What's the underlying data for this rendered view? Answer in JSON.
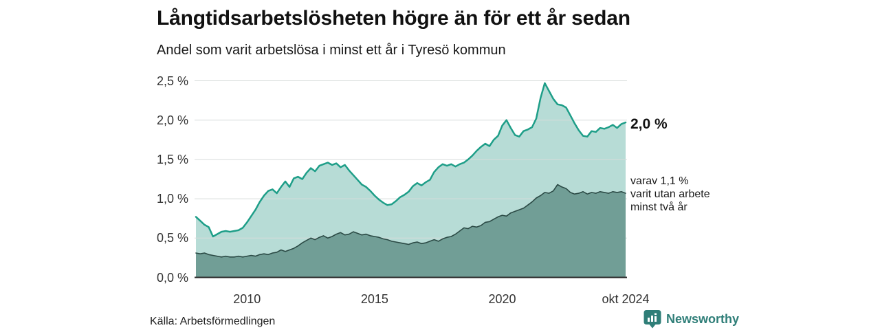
{
  "header": {
    "title": "Långtidsarbetslösheten högre än för ett år sedan",
    "subtitle": "Andel som varit arbetslösa i minst ett år i Tyresö kommun"
  },
  "chart_data": {
    "type": "area",
    "title": "Långtidsarbetslösheten högre än för ett år sedan",
    "subtitle": "Andel som varit arbetslösa i minst ett år i Tyresö kommun",
    "unit": "%",
    "x_start": 2008.0,
    "x_step_years": 0.166667,
    "x_end_label": "okt 2024",
    "ylim": [
      0,
      2.5
    ],
    "grid": true,
    "yticks": [
      {
        "value": 0.0,
        "label": "0,0 %"
      },
      {
        "value": 0.5,
        "label": "0,5 %"
      },
      {
        "value": 1.0,
        "label": "1,0 %"
      },
      {
        "value": 1.5,
        "label": "1,5 %"
      },
      {
        "value": 2.0,
        "label": "2,0 %"
      },
      {
        "value": 2.5,
        "label": "2,5 %"
      }
    ],
    "xticks": [
      {
        "year": 2010.0,
        "label": "2010"
      },
      {
        "year": 2015.0,
        "label": "2015"
      },
      {
        "year": 2020.0,
        "label": "2020"
      },
      {
        "year": 2024.8333,
        "label": "okt 2024"
      }
    ],
    "series": [
      {
        "name": "Andel som varit arbetslösa i minst ett år",
        "fill": "#b7dcd6",
        "line": "#1e9e88",
        "line_width": 2.5,
        "latest_value": 2.0,
        "values": [
          0.77,
          0.72,
          0.67,
          0.64,
          0.52,
          0.55,
          0.58,
          0.59,
          0.58,
          0.59,
          0.6,
          0.63,
          0.7,
          0.78,
          0.86,
          0.96,
          1.04,
          1.1,
          1.12,
          1.07,
          1.15,
          1.22,
          1.15,
          1.26,
          1.28,
          1.25,
          1.33,
          1.39,
          1.35,
          1.42,
          1.44,
          1.46,
          1.43,
          1.45,
          1.4,
          1.43,
          1.36,
          1.3,
          1.24,
          1.18,
          1.15,
          1.1,
          1.04,
          0.99,
          0.95,
          0.92,
          0.93,
          0.97,
          1.02,
          1.05,
          1.09,
          1.16,
          1.2,
          1.17,
          1.21,
          1.24,
          1.34,
          1.4,
          1.44,
          1.42,
          1.44,
          1.41,
          1.44,
          1.46,
          1.5,
          1.55,
          1.61,
          1.66,
          1.7,
          1.67,
          1.75,
          1.8,
          1.93,
          2.0,
          1.9,
          1.81,
          1.79,
          1.86,
          1.88,
          1.91,
          2.02,
          2.28,
          2.47,
          2.37,
          2.27,
          2.2,
          2.19,
          2.16,
          2.06,
          1.96,
          1.87,
          1.8,
          1.79,
          1.86,
          1.85,
          1.9,
          1.89,
          1.91,
          1.94,
          1.9,
          1.95,
          1.97
        ]
      },
      {
        "name": "varav utan arbete minst två år",
        "fill": "#719e96",
        "line": "#2b4a45",
        "line_width": 1.6,
        "latest_value": 1.1,
        "values": [
          0.31,
          0.3,
          0.31,
          0.29,
          0.28,
          0.27,
          0.26,
          0.27,
          0.26,
          0.26,
          0.27,
          0.26,
          0.27,
          0.28,
          0.27,
          0.29,
          0.3,
          0.29,
          0.31,
          0.32,
          0.35,
          0.33,
          0.35,
          0.37,
          0.4,
          0.44,
          0.47,
          0.5,
          0.48,
          0.51,
          0.53,
          0.5,
          0.52,
          0.55,
          0.57,
          0.54,
          0.55,
          0.58,
          0.56,
          0.54,
          0.55,
          0.53,
          0.52,
          0.51,
          0.49,
          0.48,
          0.46,
          0.45,
          0.44,
          0.43,
          0.42,
          0.44,
          0.45,
          0.43,
          0.44,
          0.46,
          0.48,
          0.46,
          0.49,
          0.51,
          0.52,
          0.55,
          0.59,
          0.63,
          0.62,
          0.65,
          0.64,
          0.66,
          0.7,
          0.71,
          0.74,
          0.77,
          0.79,
          0.78,
          0.82,
          0.84,
          0.86,
          0.88,
          0.92,
          0.96,
          1.01,
          1.04,
          1.08,
          1.07,
          1.1,
          1.18,
          1.15,
          1.13,
          1.08,
          1.06,
          1.07,
          1.09,
          1.06,
          1.08,
          1.07,
          1.09,
          1.08,
          1.07,
          1.09,
          1.08,
          1.09,
          1.07
        ]
      }
    ],
    "annotations": {
      "latest_total_label": "2,0 %",
      "latest_two_year_label": "varav 1,1 %\nvarit utan arbete\nminst två år"
    }
  },
  "footer": {
    "source": "Källa: Arbetsförmedlingen",
    "brand": "Newsworthy"
  },
  "colors": {
    "accent_teal": "#1e9e88",
    "fill_light": "#b7dcd6",
    "fill_dark": "#719e96",
    "line_dark": "#2b4a45",
    "grid": "#d7dbda",
    "axis": "#2b2b2b",
    "brand_teal": "#2f7e78"
  }
}
